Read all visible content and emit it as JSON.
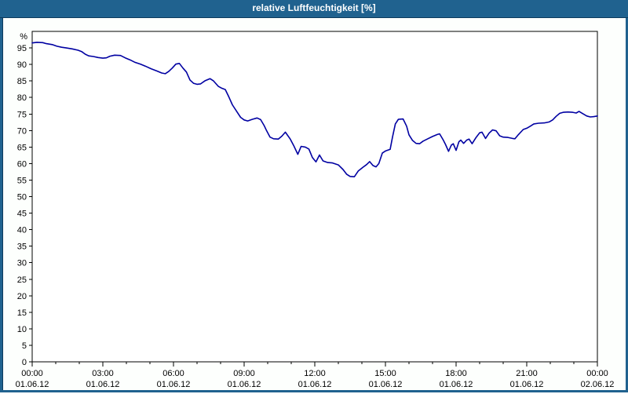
{
  "window": {
    "title": "relative Luftfeuchtigkeit [%]"
  },
  "colors": {
    "titlebar_bg": "#20628f",
    "window_border": "#20628f",
    "frame_edge": "#0d3a5c",
    "plot_line": "#0000a2",
    "grid": "#000000",
    "background": "#fdfffd",
    "plot_background": "#ffffff",
    "text": "#000000"
  },
  "chart_data": {
    "type": "line",
    "title": "relative Luftfeuchtigkeit [%]",
    "ylabel": "%",
    "xlabel": "",
    "ylim": [
      0,
      100
    ],
    "xlim_hours": [
      0,
      24
    ],
    "y_tick_step": 5,
    "y_ticks": [
      0,
      5,
      10,
      15,
      20,
      25,
      30,
      35,
      40,
      45,
      50,
      55,
      60,
      65,
      70,
      75,
      80,
      85,
      90,
      95
    ],
    "grid": "dashed",
    "legend": "none",
    "x_minor_tick_every_hours": 1,
    "x_ticks": [
      {
        "hour": 0,
        "time": "00:00",
        "date": "01.06.12"
      },
      {
        "hour": 3,
        "time": "03:00",
        "date": "01.06.12"
      },
      {
        "hour": 6,
        "time": "06:00",
        "date": "01.06.12"
      },
      {
        "hour": 9,
        "time": "09:00",
        "date": "01.06.12"
      },
      {
        "hour": 12,
        "time": "12:00",
        "date": "01.06.12"
      },
      {
        "hour": 15,
        "time": "15:00",
        "date": "01.06.12"
      },
      {
        "hour": 18,
        "time": "18:00",
        "date": "01.06.12"
      },
      {
        "hour": 21,
        "time": "21:00",
        "date": "01.06.12"
      },
      {
        "hour": 24,
        "time": "00:00",
        "date": "02.06.12"
      }
    ],
    "series": [
      {
        "name": "relative Luftfeuchtigkeit",
        "unit": "%",
        "color": "#0000a2",
        "points": [
          [
            0,
            96.5
          ],
          [
            0.2,
            96.7
          ],
          [
            0.45,
            96.6
          ],
          [
            0.6,
            96.3
          ],
          [
            0.85,
            96.0
          ],
          [
            1.05,
            95.5
          ],
          [
            1.25,
            95.2
          ],
          [
            1.45,
            95.0
          ],
          [
            1.7,
            94.7
          ],
          [
            1.95,
            94.3
          ],
          [
            2.1,
            93.9
          ],
          [
            2.25,
            93.1
          ],
          [
            2.4,
            92.6
          ],
          [
            2.6,
            92.4
          ],
          [
            2.8,
            92.1
          ],
          [
            3.0,
            91.9
          ],
          [
            3.15,
            92.0
          ],
          [
            3.3,
            92.5
          ],
          [
            3.5,
            92.8
          ],
          [
            3.75,
            92.7
          ],
          [
            3.95,
            92.0
          ],
          [
            4.15,
            91.4
          ],
          [
            4.35,
            90.7
          ],
          [
            4.6,
            90.1
          ],
          [
            4.8,
            89.5
          ],
          [
            5.05,
            88.7
          ],
          [
            5.3,
            88.0
          ],
          [
            5.5,
            87.4
          ],
          [
            5.65,
            87.2
          ],
          [
            5.8,
            87.9
          ],
          [
            5.95,
            88.9
          ],
          [
            6.1,
            90.1
          ],
          [
            6.25,
            90.3
          ],
          [
            6.4,
            88.9
          ],
          [
            6.55,
            87.7
          ],
          [
            6.7,
            85.3
          ],
          [
            6.85,
            84.3
          ],
          [
            7.0,
            84.0
          ],
          [
            7.15,
            84.1
          ],
          [
            7.35,
            85.1
          ],
          [
            7.55,
            85.7
          ],
          [
            7.7,
            85.0
          ],
          [
            7.9,
            83.4
          ],
          [
            8.05,
            82.8
          ],
          [
            8.2,
            82.4
          ],
          [
            8.35,
            80.2
          ],
          [
            8.5,
            77.8
          ],
          [
            8.7,
            75.6
          ],
          [
            8.85,
            74.0
          ],
          [
            9.0,
            73.2
          ],
          [
            9.15,
            72.9
          ],
          [
            9.35,
            73.4
          ],
          [
            9.55,
            73.8
          ],
          [
            9.7,
            73.3
          ],
          [
            9.85,
            71.5
          ],
          [
            9.95,
            70.0
          ],
          [
            10.1,
            68.0
          ],
          [
            10.25,
            67.5
          ],
          [
            10.45,
            67.4
          ],
          [
            10.6,
            68.3
          ],
          [
            10.75,
            69.5
          ],
          [
            10.95,
            67.5
          ],
          [
            11.1,
            65.5
          ],
          [
            11.28,
            62.8
          ],
          [
            11.42,
            65.2
          ],
          [
            11.6,
            65.0
          ],
          [
            11.75,
            64.4
          ],
          [
            11.9,
            61.8
          ],
          [
            12.05,
            60.5
          ],
          [
            12.2,
            62.6
          ],
          [
            12.35,
            60.8
          ],
          [
            12.55,
            60.3
          ],
          [
            12.75,
            60.2
          ],
          [
            13.0,
            59.6
          ],
          [
            13.2,
            58.2
          ],
          [
            13.35,
            56.8
          ],
          [
            13.5,
            56.1
          ],
          [
            13.68,
            56.0
          ],
          [
            13.85,
            57.8
          ],
          [
            14.05,
            58.9
          ],
          [
            14.2,
            59.7
          ],
          [
            14.33,
            60.6
          ],
          [
            14.47,
            59.4
          ],
          [
            14.6,
            59.0
          ],
          [
            14.72,
            60.0
          ],
          [
            14.87,
            63.2
          ],
          [
            15.0,
            63.8
          ],
          [
            15.2,
            64.3
          ],
          [
            15.3,
            68.0
          ],
          [
            15.42,
            72.0
          ],
          [
            15.55,
            73.4
          ],
          [
            15.75,
            73.5
          ],
          [
            15.9,
            71.3
          ],
          [
            16.0,
            68.7
          ],
          [
            16.15,
            67.0
          ],
          [
            16.3,
            66.1
          ],
          [
            16.45,
            66.0
          ],
          [
            16.6,
            66.8
          ],
          [
            16.8,
            67.5
          ],
          [
            17.0,
            68.2
          ],
          [
            17.2,
            68.8
          ],
          [
            17.3,
            69.0
          ],
          [
            17.45,
            67.2
          ],
          [
            17.55,
            65.8
          ],
          [
            17.68,
            63.7
          ],
          [
            17.8,
            65.6
          ],
          [
            17.88,
            66.0
          ],
          [
            18.0,
            64.0
          ],
          [
            18.12,
            66.6
          ],
          [
            18.2,
            67.1
          ],
          [
            18.32,
            66.1
          ],
          [
            18.45,
            67.1
          ],
          [
            18.55,
            67.4
          ],
          [
            18.68,
            66.0
          ],
          [
            18.85,
            67.9
          ],
          [
            19.0,
            69.3
          ],
          [
            19.1,
            69.5
          ],
          [
            19.25,
            67.6
          ],
          [
            19.4,
            69.2
          ],
          [
            19.55,
            70.2
          ],
          [
            19.7,
            69.9
          ],
          [
            19.85,
            68.4
          ],
          [
            20.0,
            68.0
          ],
          [
            20.2,
            67.9
          ],
          [
            20.4,
            67.6
          ],
          [
            20.5,
            67.5
          ],
          [
            20.65,
            68.8
          ],
          [
            20.85,
            70.3
          ],
          [
            21.0,
            70.7
          ],
          [
            21.15,
            71.3
          ],
          [
            21.3,
            72.0
          ],
          [
            21.5,
            72.2
          ],
          [
            21.75,
            72.3
          ],
          [
            21.95,
            72.6
          ],
          [
            22.1,
            73.2
          ],
          [
            22.25,
            74.3
          ],
          [
            22.4,
            75.2
          ],
          [
            22.55,
            75.5
          ],
          [
            22.75,
            75.6
          ],
          [
            22.95,
            75.5
          ],
          [
            23.1,
            75.3
          ],
          [
            23.22,
            75.8
          ],
          [
            23.38,
            75.1
          ],
          [
            23.55,
            74.4
          ],
          [
            23.7,
            74.1
          ],
          [
            23.85,
            74.2
          ],
          [
            24.0,
            74.4
          ]
        ]
      }
    ]
  }
}
